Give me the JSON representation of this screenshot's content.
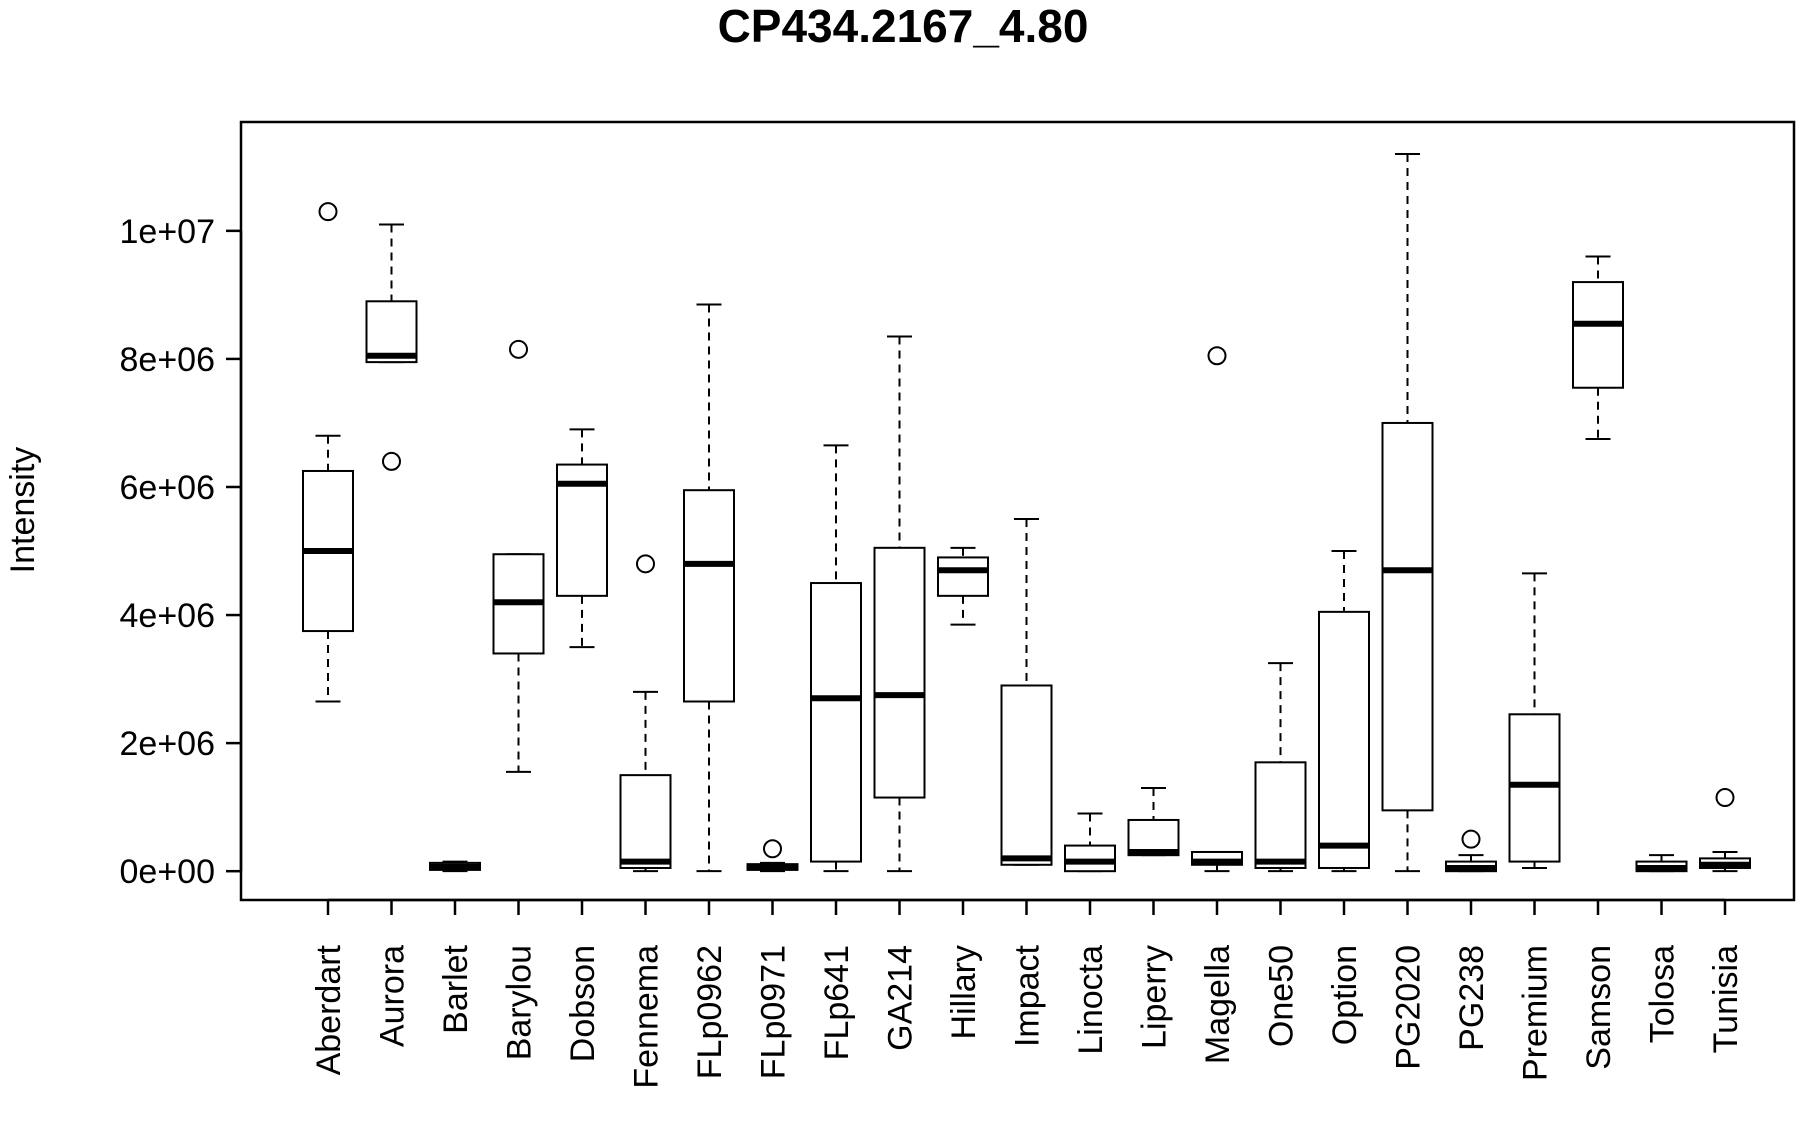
{
  "chart_data": {
    "type": "box",
    "title": "CP434.2167_4.80",
    "xlabel": "",
    "ylabel": "Intensity",
    "ylim": [
      -450000,
      11700000
    ],
    "yticks": [
      0,
      2000000,
      4000000,
      6000000,
      8000000,
      10000000
    ],
    "ytick_labels": [
      "0e+00",
      "2e+06",
      "4e+06",
      "6e+06",
      "8e+06",
      "1e+07"
    ],
    "categories": [
      "Aberdart",
      "Aurora",
      "Barlet",
      "Barylou",
      "Dobson",
      "Fennema",
      "FLp0962",
      "FLp0971",
      "FLp641",
      "GA214",
      "Hillary",
      "Impact",
      "Linocta",
      "Liperry",
      "Magella",
      "One50",
      "Option",
      "PG2020",
      "PG238",
      "Premium",
      "Samson",
      "Tolosa",
      "Tunisia"
    ],
    "boxes": [
      {
        "min": 2650000,
        "q1": 3750000,
        "median": 5000000,
        "q3": 6250000,
        "max": 6800000,
        "outliers": [
          10300000
        ]
      },
      {
        "min": 7950000,
        "q1": 7950000,
        "median": 8050000,
        "q3": 8900000,
        "max": 10100000,
        "outliers": [
          6400000
        ]
      },
      {
        "min": 0,
        "q1": 20000,
        "median": 70000,
        "q3": 130000,
        "max": 150000,
        "outliers": []
      },
      {
        "min": 1550000,
        "q1": 3400000,
        "median": 4200000,
        "q3": 4950000,
        "max": 4950000,
        "outliers": [
          8150000
        ]
      },
      {
        "min": 3500000,
        "q1": 4300000,
        "median": 6050000,
        "q3": 6350000,
        "max": 6900000,
        "outliers": []
      },
      {
        "min": 0,
        "q1": 50000,
        "median": 150000,
        "q3": 1500000,
        "max": 2800000,
        "outliers": [
          4800000
        ]
      },
      {
        "min": 0,
        "q1": 2650000,
        "median": 4800000,
        "q3": 5950000,
        "max": 8850000,
        "outliers": []
      },
      {
        "min": 0,
        "q1": 20000,
        "median": 60000,
        "q3": 110000,
        "max": 130000,
        "outliers": [
          350000
        ]
      },
      {
        "min": 0,
        "q1": 150000,
        "median": 2700000,
        "q3": 4500000,
        "max": 6650000,
        "outliers": []
      },
      {
        "min": 0,
        "q1": 1150000,
        "median": 2750000,
        "q3": 5050000,
        "max": 8350000,
        "outliers": []
      },
      {
        "min": 3850000,
        "q1": 4300000,
        "median": 4700000,
        "q3": 4900000,
        "max": 5050000,
        "outliers": []
      },
      {
        "min": 100000,
        "q1": 100000,
        "median": 200000,
        "q3": 2900000,
        "max": 5500000,
        "outliers": []
      },
      {
        "min": 0,
        "q1": 0,
        "median": 150000,
        "q3": 400000,
        "max": 900000,
        "outliers": []
      },
      {
        "min": 250000,
        "q1": 250000,
        "median": 300000,
        "q3": 800000,
        "max": 1300000,
        "outliers": []
      },
      {
        "min": 0,
        "q1": 100000,
        "median": 150000,
        "q3": 300000,
        "max": 300000,
        "outliers": [
          8050000
        ]
      },
      {
        "min": 0,
        "q1": 50000,
        "median": 150000,
        "q3": 1700000,
        "max": 3250000,
        "outliers": []
      },
      {
        "min": 0,
        "q1": 50000,
        "median": 400000,
        "q3": 4050000,
        "max": 5000000,
        "outliers": []
      },
      {
        "min": 0,
        "q1": 950000,
        "median": 4700000,
        "q3": 7000000,
        "max": 11200000,
        "outliers": []
      },
      {
        "min": 0,
        "q1": 0,
        "median": 50000,
        "q3": 150000,
        "max": 250000,
        "outliers": [
          500000
        ]
      },
      {
        "min": 50000,
        "q1": 150000,
        "median": 1350000,
        "q3": 2450000,
        "max": 4650000,
        "outliers": []
      },
      {
        "min": 6750000,
        "q1": 7550000,
        "median": 8550000,
        "q3": 9200000,
        "max": 9600000,
        "outliers": []
      },
      {
        "min": 0,
        "q1": 0,
        "median": 50000,
        "q3": 150000,
        "max": 250000,
        "outliers": []
      },
      {
        "min": 0,
        "q1": 50000,
        "median": 100000,
        "q3": 200000,
        "max": 300000,
        "outliers": [
          1150000
        ]
      }
    ]
  }
}
